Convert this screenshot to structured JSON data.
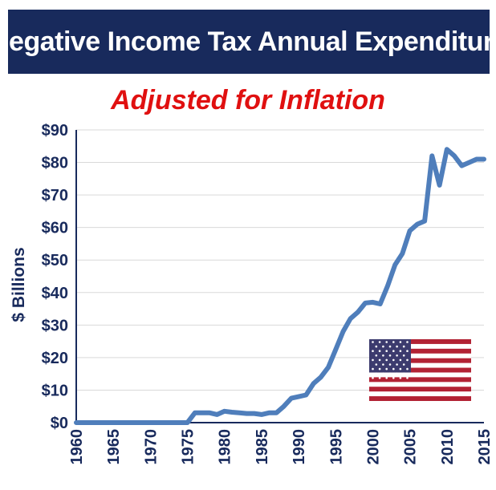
{
  "chart_data": {
    "type": "line",
    "title": "Negative Income Tax Annual Expenditure",
    "subtitle": "Adjusted for Inflation",
    "xlabel": "",
    "ylabel": "$ Billions",
    "xlim": [
      1960,
      2015
    ],
    "ylim": [
      0,
      90
    ],
    "x_ticks": [
      "1960",
      "1965",
      "1970",
      "1975",
      "1980",
      "1985",
      "1990",
      "1995",
      "2000",
      "2005",
      "2010",
      "2015"
    ],
    "y_ticks": [
      "$0",
      "$10",
      "$20",
      "$30",
      "$40",
      "$50",
      "$60",
      "$70",
      "$80",
      "$90"
    ],
    "grid": "horizontal",
    "series": [
      {
        "name": "",
        "color": "#4f7ebb",
        "x": [
          1960,
          1965,
          1970,
          1974,
          1975,
          1976,
          1977,
          1978,
          1979,
          1980,
          1981,
          1982,
          1983,
          1984,
          1985,
          1986,
          1987,
          1988,
          1989,
          1990,
          1991,
          1992,
          1993,
          1994,
          1995,
          1996,
          1997,
          1998,
          1999,
          2000,
          2001,
          2002,
          2003,
          2004,
          2005,
          2006,
          2007,
          2008,
          2009,
          2010,
          2011,
          2012,
          2013,
          2014,
          2015
        ],
        "y": [
          0,
          0,
          0,
          0,
          0,
          3,
          3,
          3,
          2.5,
          3.5,
          3.2,
          3,
          2.8,
          2.8,
          2.5,
          3,
          3,
          5,
          7.5,
          8,
          8.5,
          12,
          14,
          17,
          22.5,
          28,
          32,
          34,
          36.8,
          37,
          36.5,
          42,
          48.5,
          52,
          59,
          61,
          62,
          82,
          73,
          84,
          82,
          79,
          80,
          81,
          81
        ]
      }
    ]
  },
  "flag_icon": "us-flag-icon"
}
